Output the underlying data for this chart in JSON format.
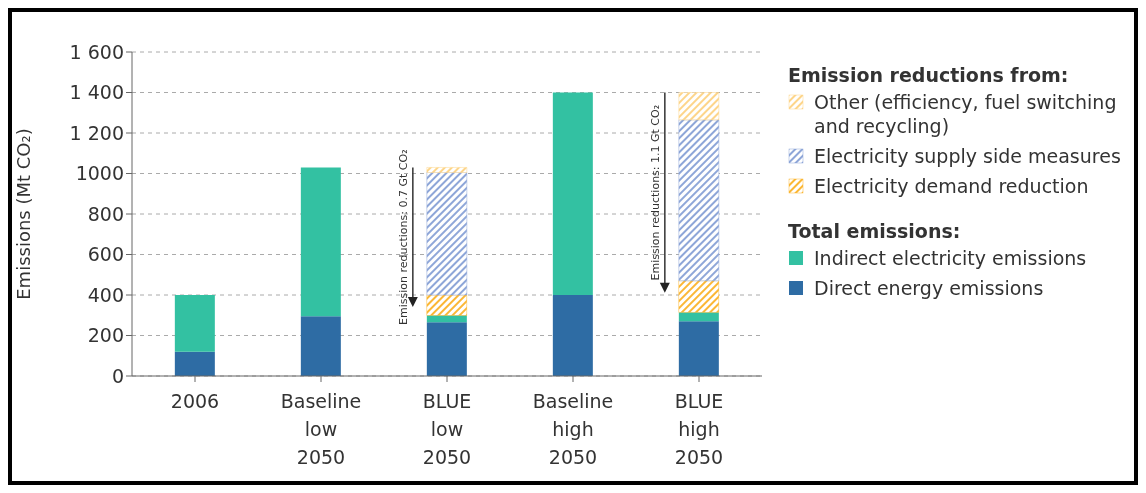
{
  "chart_data": {
    "type": "bar",
    "stacked": true,
    "ylabel": "Emissions (Mt CO₂)",
    "categories": [
      "2006",
      "Baseline low 2050",
      "BLUE low 2050",
      "Baseline high 2050",
      "BLUE high 2050"
    ],
    "series": [
      {
        "name": "Direct energy emissions",
        "color": "#2e6ca4",
        "values": [
          120,
          295,
          265,
          400,
          270
        ]
      },
      {
        "name": "Indirect electricity emissions",
        "color": "#33c1a2",
        "values": [
          280,
          735,
          35,
          1000,
          45
        ]
      },
      {
        "name": "Electricity demand reduction",
        "color": "#fbb735",
        "values": [
          null,
          null,
          100,
          null,
          155
        ]
      },
      {
        "name": "Electricity supply side measures",
        "color": "#8ea6d8",
        "values": [
          null,
          null,
          605,
          null,
          795
        ]
      },
      {
        "name": "Other (efficiency, fuel switching and recycling)",
        "color": "#fdd58a",
        "values": [
          null,
          null,
          25,
          null,
          135
        ]
      }
    ],
    "ylim": [
      0,
      1600
    ],
    "yticks": [
      0,
      200,
      400,
      600,
      800,
      1000,
      {
        "value": 1200,
        "label": "1 200"
      },
      {
        "value": 1400,
        "label": "1 400"
      },
      {
        "value": 1600,
        "label": "1 600"
      }
    ],
    "grid": "y",
    "legend": "right",
    "legend_title": "Emission reductions from:",
    "annotations": [
      "Total emissions:",
      "Emission reductions: 0.7 Gt CO₂",
      "Emission reductions: 1.1 Gt CO₂"
    ]
  }
}
